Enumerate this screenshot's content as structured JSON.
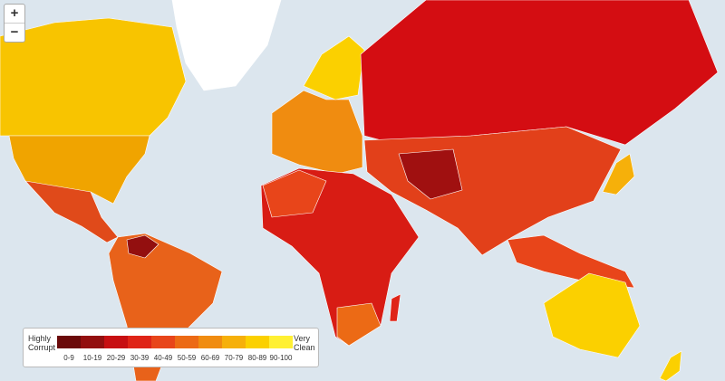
{
  "zoom": {
    "in": "+",
    "out": "−"
  },
  "legend": {
    "low_label": "Highly Corrupt",
    "high_label": "Very Clean",
    "bins": [
      {
        "label": "0-9",
        "color": "#6b0a0a"
      },
      {
        "label": "10-19",
        "color": "#930f0f"
      },
      {
        "label": "20-29",
        "color": "#c70f12"
      },
      {
        "label": "30-39",
        "color": "#df2417"
      },
      {
        "label": "40-49",
        "color": "#e8451a"
      },
      {
        "label": "50-59",
        "color": "#ec6a15"
      },
      {
        "label": "60-69",
        "color": "#f08c10"
      },
      {
        "label": "70-79",
        "color": "#f6b00a"
      },
      {
        "label": "80-89",
        "color": "#fbd000"
      },
      {
        "label": "90-100",
        "color": "#fff033"
      }
    ]
  }
}
